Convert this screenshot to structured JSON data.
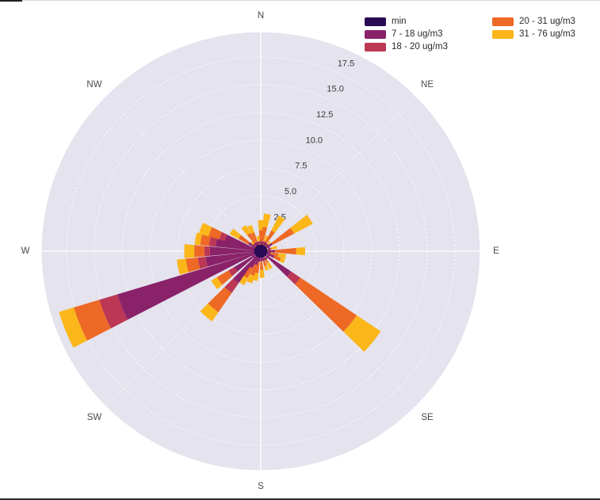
{
  "page": {
    "background": "#ffffff"
  },
  "chart_data": {
    "type": "barpolar-windrose",
    "title": "",
    "units": "ug/m3",
    "angular_axis": {
      "direction": "clockwise",
      "zero_at": "N",
      "compass_labels": [
        "N",
        "NE",
        "E",
        "SE",
        "S",
        "SW",
        "W",
        "NW"
      ],
      "compass_azimuths_deg": [
        0,
        45,
        90,
        135,
        180,
        225,
        270,
        315
      ]
    },
    "radial_axis": {
      "range": [
        0,
        20
      ],
      "tick_values": [
        2.5,
        5.0,
        7.5,
        10.0,
        12.5,
        15.0,
        17.5
      ],
      "tick_labels": [
        "2.5",
        "5.0",
        "7.5",
        "10.0",
        "12.5",
        "15.0",
        "17.5"
      ],
      "tick_label_azimuth_deg": 22.5,
      "grid": "dashed-white"
    },
    "colors": {
      "plot_background": "#e4e3ee",
      "grid": "#ffffff",
      "tick_text": "#3a3a3a",
      "compass_text": "#4a4a4a"
    },
    "segment_order": [
      "min",
      "7 - 18 ug/m3",
      "18 - 20 ug/m3",
      "20 - 31 ug/m3",
      "31 - 76 ug/m3"
    ],
    "legend": [
      {
        "label": "min",
        "color": "#280b53"
      },
      {
        "label": "7 - 18 ug/m3",
        "color": "#8a226a"
      },
      {
        "label": "18 - 20 ug/m3",
        "color": "#bc3754"
      },
      {
        "label": "20 - 31 ug/m3",
        "color": "#ed6925"
      },
      {
        "label": "31 - 76 ug/m3",
        "color": "#fbb61a"
      }
    ],
    "bars": [
      {
        "az": 0,
        "v": [
          0.5,
          0.0,
          0.0,
          1.4,
          0.9
        ]
      },
      {
        "az": 10,
        "v": [
          0.4,
          0.4,
          0.0,
          1.4,
          1.2
        ]
      },
      {
        "az": 22,
        "v": [
          0.3,
          0.0,
          0.0,
          0.7,
          0.5
        ]
      },
      {
        "az": 32,
        "v": [
          0.4,
          0.4,
          0.0,
          1.3,
          1.5
        ]
      },
      {
        "az": 45,
        "v": [
          0.3,
          0.0,
          0.0,
          0.5,
          0.4
        ]
      },
      {
        "az": 57,
        "v": [
          0.4,
          0.8,
          0.0,
          2.2,
          1.9
        ]
      },
      {
        "az": 76,
        "v": [
          0.3,
          0.0,
          0.0,
          0.7,
          0.5
        ]
      },
      {
        "az": 90,
        "v": [
          0.4,
          0.9,
          0.0,
          1.9,
          0.8
        ]
      },
      {
        "az": 102,
        "v": [
          0.3,
          0.4,
          0.0,
          0.9,
          0.7
        ]
      },
      {
        "az": 113,
        "v": [
          0.4,
          0.9,
          0.0,
          0.6,
          0.4
        ]
      },
      {
        "az": 129,
        "v": [
          0.5,
          2.8,
          1.0,
          6.1,
          2.6
        ]
      },
      {
        "az": 149,
        "v": [
          0.4,
          0.0,
          0.0,
          0.8,
          0.6
        ]
      },
      {
        "az": 162,
        "v": [
          0.4,
          0.5,
          0.0,
          0.5,
          0.4
        ]
      },
      {
        "az": 177,
        "v": [
          0.4,
          0.5,
          0.0,
          0.8,
          0.7
        ]
      },
      {
        "az": 191,
        "v": [
          0.4,
          0.6,
          0.0,
          1.0,
          0.7
        ]
      },
      {
        "az": 200,
        "v": [
          0.4,
          0.9,
          0.0,
          1.0,
          0.7
        ]
      },
      {
        "az": 211,
        "v": [
          0.4,
          1.3,
          0.0,
          1.0,
          0.7
        ]
      },
      {
        "az": 220,
        "v": [
          0.5,
          3.0,
          1.1,
          2.1,
          1.0
        ]
      },
      {
        "az": 234,
        "v": [
          0.4,
          2.4,
          0.6,
          1.2,
          0.6
        ]
      },
      {
        "az": 248,
        "v": [
          0.6,
          12.9,
          1.7,
          2.4,
          1.4
        ]
      },
      {
        "az": 259,
        "v": [
          0.5,
          4.5,
          0.7,
          1.1,
          0.8
        ]
      },
      {
        "az": 270,
        "v": [
          0.5,
          4.1,
          0.5,
          0.9,
          0.9
        ]
      },
      {
        "az": 281,
        "v": [
          0.5,
          3.6,
          0.6,
          0.8,
          0.5
        ]
      },
      {
        "az": 291,
        "v": [
          0.4,
          3.0,
          0.5,
          1.0,
          0.9
        ]
      },
      {
        "az": 304,
        "v": [
          0.4,
          0.9,
          0.0,
          1.0,
          0.9
        ]
      },
      {
        "az": 315,
        "v": [
          0.3,
          0.0,
          0.0,
          0.5,
          0.4
        ]
      },
      {
        "az": 325,
        "v": [
          0.4,
          0.5,
          0.0,
          1.0,
          0.8
        ]
      },
      {
        "az": 336,
        "v": [
          0.4,
          0.4,
          0.0,
          1.0,
          0.7
        ]
      },
      {
        "az": 349,
        "v": [
          0.3,
          0.0,
          0.0,
          0.6,
          0.5
        ]
      }
    ]
  }
}
